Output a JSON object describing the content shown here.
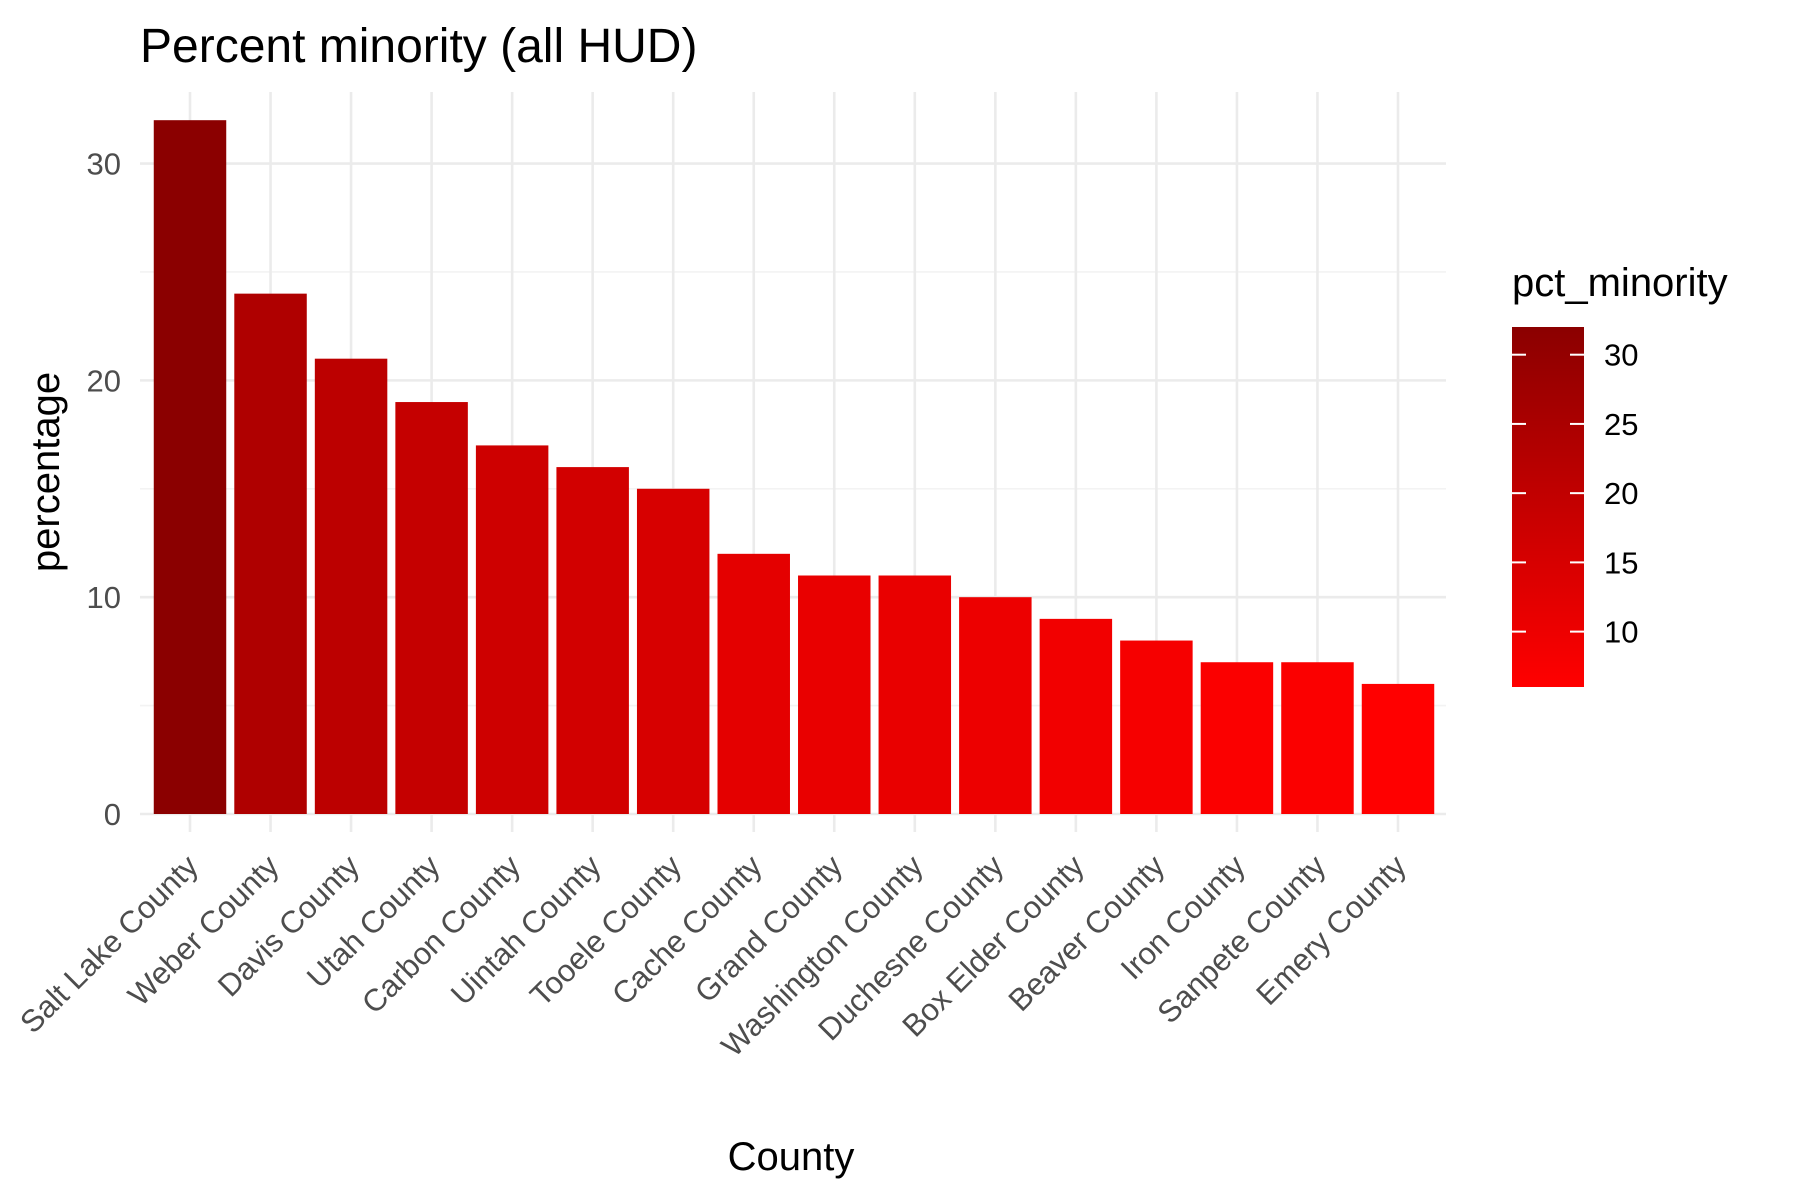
{
  "chart_data": {
    "type": "bar",
    "title": "Percent minority (all HUD)",
    "xlabel": "County",
    "ylabel": "percentage",
    "categories": [
      "Salt Lake County",
      "Weber County",
      "Davis County",
      "Utah County",
      "Carbon County",
      "Uintah County",
      "Tooele County",
      "Cache County",
      "Grand County",
      "Washington County",
      "Duchesne County",
      "Box Elder County",
      "Beaver County",
      "Iron County",
      "Sanpete County",
      "Emery County"
    ],
    "values": [
      32,
      24,
      21,
      19,
      17,
      16,
      15,
      12,
      11,
      11,
      10,
      9,
      8,
      7,
      7,
      6
    ],
    "ylim": [
      0,
      33.3
    ],
    "yticks": [
      0,
      10,
      20,
      30
    ],
    "grid": true,
    "legend": {
      "title": "pct_minority",
      "placement": "right",
      "ticks": [
        10,
        15,
        20,
        25,
        30
      ],
      "range": [
        6,
        32
      ],
      "color_low": "#ff0000",
      "color_high": "#8b0000"
    }
  }
}
